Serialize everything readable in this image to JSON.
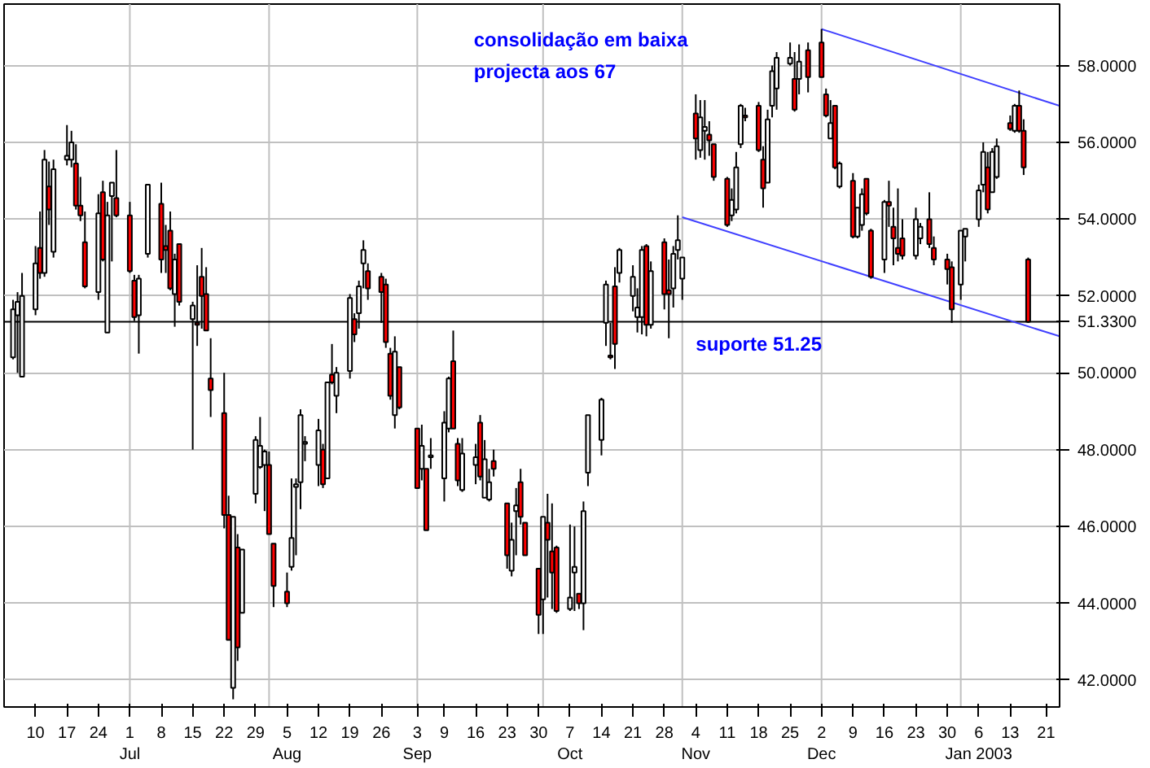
{
  "chart_data": {
    "type": "candlestick",
    "x": [
      "2002-06-05",
      "2002-06-06",
      "2002-06-07",
      "2002-06-10",
      "2002-06-11",
      "2002-06-12",
      "2002-06-13",
      "2002-06-14",
      "2002-06-17",
      "2002-06-18",
      "2002-06-19",
      "2002-06-20",
      "2002-06-21",
      "2002-06-24",
      "2002-06-25",
      "2002-06-26",
      "2002-06-27",
      "2002-06-28",
      "2002-07-01",
      "2002-07-02",
      "2002-07-03",
      "2002-07-05",
      "2002-07-08",
      "2002-07-09",
      "2002-07-10",
      "2002-07-11",
      "2002-07-12",
      "2002-07-15",
      "2002-07-16",
      "2002-07-17",
      "2002-07-18",
      "2002-07-19",
      "2002-07-22",
      "2002-07-23",
      "2002-07-24",
      "2002-07-25",
      "2002-07-26",
      "2002-07-29",
      "2002-07-30",
      "2002-07-31",
      "2002-08-01",
      "2002-08-02",
      "2002-08-05",
      "2002-08-06",
      "2002-08-07",
      "2002-08-08",
      "2002-08-09",
      "2002-08-12",
      "2002-08-13",
      "2002-08-14",
      "2002-08-15",
      "2002-08-16",
      "2002-08-19",
      "2002-08-20",
      "2002-08-21",
      "2002-08-22",
      "2002-08-23",
      "2002-08-26",
      "2002-08-27",
      "2002-08-28",
      "2002-08-29",
      "2002-08-30",
      "2002-09-03",
      "2002-09-04",
      "2002-09-05",
      "2002-09-06",
      "2002-09-09",
      "2002-09-10",
      "2002-09-11",
      "2002-09-12",
      "2002-09-13",
      "2002-09-16",
      "2002-09-17",
      "2002-09-18",
      "2002-09-19",
      "2002-09-20",
      "2002-09-23",
      "2002-09-24",
      "2002-09-25",
      "2002-09-26",
      "2002-09-27",
      "2002-09-30",
      "2002-10-01",
      "2002-10-02",
      "2002-10-03",
      "2002-10-04",
      "2002-10-07",
      "2002-10-08",
      "2002-10-09",
      "2002-10-10",
      "2002-10-11",
      "2002-10-14",
      "2002-10-15",
      "2002-10-16",
      "2002-10-17",
      "2002-10-18",
      "2002-10-21",
      "2002-10-22",
      "2002-10-23",
      "2002-10-24",
      "2002-10-25",
      "2002-10-28",
      "2002-10-29",
      "2002-10-30",
      "2002-10-31",
      "2002-11-01",
      "2002-11-04",
      "2002-11-05",
      "2002-11-06",
      "2002-11-07",
      "2002-11-08",
      "2002-11-11",
      "2002-11-12",
      "2002-11-13",
      "2002-11-14",
      "2002-11-15",
      "2002-11-18",
      "2002-11-19",
      "2002-11-20",
      "2002-11-21",
      "2002-11-22",
      "2002-11-25",
      "2002-11-26",
      "2002-11-27",
      "2002-11-29",
      "2002-12-02",
      "2002-12-03",
      "2002-12-04",
      "2002-12-05",
      "2002-12-06",
      "2002-12-09",
      "2002-12-10",
      "2002-12-11",
      "2002-12-12",
      "2002-12-13",
      "2002-12-16",
      "2002-12-17",
      "2002-12-18",
      "2002-12-19",
      "2002-12-20",
      "2002-12-23",
      "2002-12-24",
      "2002-12-26",
      "2002-12-27",
      "2002-12-30",
      "2002-12-31",
      "2003-01-02",
      "2003-01-03",
      "2003-01-06",
      "2003-01-07",
      "2003-01-08",
      "2003-01-09",
      "2003-01-10",
      "2003-01-13",
      "2003-01-14",
      "2003-01-15",
      "2003-01-16",
      "2003-01-17"
    ],
    "ohlc": [
      [
        50.4,
        51.9,
        50.35,
        51.65
      ],
      [
        51.5,
        52.1,
        50.0,
        51.85
      ],
      [
        49.9,
        52.6,
        49.9,
        52.0
      ],
      [
        51.65,
        53.3,
        51.5,
        52.85
      ],
      [
        53.25,
        54.2,
        52.45,
        52.6
      ],
      [
        52.6,
        55.8,
        52.5,
        55.55
      ],
      [
        54.85,
        55.5,
        53.85,
        54.25
      ],
      [
        53.15,
        55.55,
        53.0,
        55.3
      ],
      [
        55.55,
        56.45,
        55.4,
        55.65
      ],
      [
        55.55,
        56.3,
        55.35,
        56.0
      ],
      [
        55.45,
        55.95,
        54.25,
        54.35
      ],
      [
        54.35,
        55.1,
        53.95,
        54.1
      ],
      [
        53.4,
        54.2,
        52.2,
        52.25
      ],
      [
        52.1,
        54.65,
        51.9,
        54.15
      ],
      [
        54.7,
        55.0,
        52.9,
        52.95
      ],
      [
        51.05,
        54.45,
        51.05,
        54.1
      ],
      [
        54.6,
        54.95,
        52.9,
        54.95
      ],
      [
        54.55,
        55.8,
        54.05,
        54.1
      ],
      [
        54.1,
        54.45,
        52.6,
        52.65
      ],
      [
        52.4,
        52.55,
        51.35,
        51.45
      ],
      [
        51.5,
        52.55,
        50.5,
        52.45
      ],
      [
        53.1,
        54.9,
        53.0,
        54.9
      ],
      [
        54.4,
        54.95,
        52.6,
        52.95
      ],
      [
        53.3,
        53.85,
        52.6,
        53.2
      ],
      [
        53.7,
        54.2,
        52.15,
        52.2
      ],
      [
        52.05,
        53.1,
        51.2,
        52.95
      ],
      [
        53.35,
        53.35,
        51.75,
        51.85
      ],
      [
        51.4,
        51.85,
        48.0,
        51.75
      ],
      [
        51.3,
        52.8,
        50.7,
        51.25
      ],
      [
        52.5,
        53.25,
        51.15,
        52.0
      ],
      [
        52.05,
        52.75,
        51.1,
        51.1
      ],
      [
        49.85,
        50.9,
        48.85,
        49.55
      ],
      [
        48.95,
        50.0,
        45.95,
        46.3
      ],
      [
        46.3,
        46.8,
        43.05,
        43.05
      ],
      [
        41.8,
        46.25,
        41.5,
        46.25
      ],
      [
        45.45,
        45.8,
        42.5,
        42.85
      ],
      [
        43.75,
        45.4,
        43.75,
        45.4
      ],
      [
        46.85,
        48.35,
        46.6,
        48.25
      ],
      [
        47.55,
        48.85,
        47.5,
        48.1
      ],
      [
        47.6,
        48.0,
        46.4,
        47.95
      ],
      [
        47.6,
        47.95,
        45.8,
        45.8
      ],
      [
        45.55,
        45.55,
        43.9,
        44.45
      ],
      [
        44.3,
        44.8,
        43.9,
        44.0
      ],
      [
        44.95,
        47.25,
        44.85,
        45.7
      ],
      [
        47.03,
        47.25,
        45.25,
        47.1
      ],
      [
        47.15,
        49.05,
        46.45,
        48.9
      ],
      [
        48.15,
        48.35,
        47.7,
        48.2
      ],
      [
        47.6,
        48.8,
        47.05,
        48.5
      ],
      [
        48.0,
        48.15,
        47.0,
        47.1
      ],
      [
        47.25,
        49.75,
        47.25,
        49.75
      ],
      [
        49.95,
        50.75,
        49.7,
        49.75
      ],
      [
        49.4,
        50.15,
        48.95,
        50.0
      ],
      [
        50.05,
        52.05,
        49.85,
        51.95
      ],
      [
        51.4,
        51.55,
        50.8,
        51.0
      ],
      [
        51.55,
        52.4,
        51.15,
        52.25
      ],
      [
        52.85,
        53.45,
        52.2,
        53.2
      ],
      [
        52.65,
        52.85,
        51.9,
        52.2
      ],
      [
        52.5,
        52.6,
        51.3,
        52.1
      ],
      [
        52.3,
        52.45,
        50.65,
        50.8
      ],
      [
        50.5,
        50.65,
        49.3,
        49.4
      ],
      [
        48.9,
        50.95,
        48.55,
        50.55
      ],
      [
        50.15,
        50.15,
        49.05,
        49.1
      ],
      [
        48.55,
        48.55,
        47.0,
        47.0
      ],
      [
        47.5,
        48.65,
        47.2,
        48.1
      ],
      [
        47.5,
        47.5,
        45.9,
        45.9
      ],
      [
        47.8,
        48.3,
        47.5,
        47.85
      ],
      [
        47.25,
        49.0,
        46.65,
        48.7
      ],
      [
        48.55,
        49.9,
        48.45,
        49.85
      ],
      [
        50.3,
        51.1,
        48.55,
        48.55
      ],
      [
        48.15,
        48.3,
        47.05,
        47.2
      ],
      [
        46.95,
        48.3,
        46.9,
        47.9
      ],
      [
        47.6,
        48.15,
        47.1,
        47.8
      ],
      [
        48.7,
        48.9,
        47.2,
        47.3
      ],
      [
        46.75,
        48.25,
        46.75,
        47.75
      ],
      [
        46.7,
        47.5,
        46.65,
        47.15
      ],
      [
        47.7,
        48.0,
        47.3,
        47.5
      ],
      [
        46.6,
        46.6,
        44.9,
        45.25
      ],
      [
        44.85,
        46.1,
        44.7,
        45.65
      ],
      [
        46.4,
        47.0,
        45.25,
        46.55
      ],
      [
        47.15,
        47.5,
        46.05,
        46.25
      ],
      [
        46.1,
        46.1,
        45.25,
        45.25
      ],
      [
        44.9,
        44.9,
        43.2,
        43.7
      ],
      [
        44.1,
        46.25,
        43.2,
        46.25
      ],
      [
        46.1,
        46.85,
        44.15,
        45.65
      ],
      [
        45.35,
        46.6,
        43.85,
        44.8
      ],
      [
        45.45,
        45.5,
        43.75,
        43.8
      ],
      [
        43.85,
        46.05,
        43.8,
        44.15
      ],
      [
        44.8,
        46.0,
        43.8,
        44.95
      ],
      [
        44.25,
        44.25,
        43.85,
        44.0
      ],
      [
        44.0,
        46.65,
        43.3,
        46.4
      ],
      [
        47.4,
        48.9,
        47.05,
        48.9
      ],
      [
        48.25,
        49.35,
        47.85,
        49.3
      ],
      [
        51.3,
        52.4,
        50.7,
        52.3
      ],
      [
        50.45,
        51.3,
        50.35,
        50.4
      ],
      [
        52.25,
        52.75,
        50.1,
        50.75
      ],
      [
        52.6,
        53.25,
        52.35,
        53.2
      ],
      [
        52.0,
        52.8,
        51.6,
        52.5
      ],
      [
        51.45,
        52.2,
        51.05,
        51.7
      ],
      [
        51.45,
        53.3,
        51.0,
        53.2
      ],
      [
        53.3,
        53.35,
        50.95,
        51.25
      ],
      [
        51.25,
        52.9,
        51.15,
        52.65
      ],
      [
        53.4,
        53.5,
        51.65,
        52.05
      ],
      [
        52.15,
        52.95,
        50.9,
        52.05
      ],
      [
        52.2,
        53.3,
        51.7,
        53.1
      ],
      [
        53.2,
        54.1,
        52.95,
        53.45
      ],
      [
        52.45,
        53.0,
        51.9,
        53.0
      ],
      [
        56.75,
        57.25,
        55.55,
        56.1
      ],
      [
        55.8,
        57.1,
        55.6,
        56.65
      ],
      [
        56.3,
        57.1,
        55.55,
        56.4
      ],
      [
        56.2,
        56.55,
        55.65,
        56.05
      ],
      [
        55.95,
        55.95,
        55.0,
        55.1
      ],
      [
        55.05,
        55.1,
        53.8,
        53.85
      ],
      [
        54.1,
        54.8,
        53.95,
        54.5
      ],
      [
        54.25,
        55.75,
        54.15,
        55.35
      ],
      [
        55.95,
        57.0,
        55.85,
        56.95
      ],
      [
        56.7,
        56.9,
        56.55,
        56.65
      ],
      [
        56.95,
        57.05,
        55.75,
        55.8
      ],
      [
        55.55,
        55.9,
        54.3,
        54.8
      ],
      [
        54.95,
        56.85,
        54.95,
        56.6
      ],
      [
        56.95,
        58.0,
        56.65,
        57.85
      ],
      [
        57.4,
        58.35,
        56.85,
        58.2
      ],
      [
        58.05,
        58.6,
        58.0,
        58.2
      ],
      [
        57.65,
        58.35,
        56.8,
        56.85
      ],
      [
        57.65,
        58.55,
        57.25,
        58.1
      ],
      [
        58.4,
        58.6,
        57.3,
        57.7
      ],
      [
        58.6,
        58.95,
        57.7,
        57.7
      ],
      [
        57.25,
        57.4,
        56.65,
        56.7
      ],
      [
        56.1,
        57.1,
        56.1,
        56.5
      ],
      [
        56.95,
        56.95,
        55.3,
        55.35
      ],
      [
        54.85,
        55.5,
        54.8,
        55.45
      ],
      [
        55.0,
        55.2,
        53.5,
        53.55
      ],
      [
        53.55,
        54.3,
        53.5,
        54.3
      ],
      [
        53.85,
        54.8,
        53.7,
        54.65
      ],
      [
        55.05,
        55.05,
        54.1,
        54.15
      ],
      [
        53.7,
        53.75,
        52.45,
        52.5
      ],
      [
        52.95,
        54.5,
        52.6,
        54.45
      ],
      [
        54.45,
        55.0,
        53.8,
        54.35
      ],
      [
        53.8,
        54.3,
        52.8,
        53.5
      ],
      [
        53.25,
        54.8,
        52.9,
        53.1
      ],
      [
        53.5,
        54.0,
        52.95,
        53.05
      ],
      [
        53.05,
        54.3,
        52.95,
        54.0
      ],
      [
        53.5,
        53.9,
        53.35,
        53.8
      ],
      [
        54.0,
        54.7,
        53.25,
        53.35
      ],
      [
        53.25,
        53.55,
        52.8,
        52.95
      ],
      [
        52.95,
        53.1,
        52.3,
        52.7
      ],
      [
        52.75,
        52.9,
        51.3,
        51.65
      ],
      [
        52.3,
        53.7,
        51.9,
        53.7
      ],
      [
        53.55,
        53.75,
        52.9,
        53.75
      ],
      [
        54.0,
        54.9,
        53.8,
        54.75
      ],
      [
        54.9,
        56.0,
        54.7,
        55.75
      ],
      [
        55.35,
        55.75,
        54.15,
        54.25
      ],
      [
        54.7,
        55.85,
        54.7,
        55.75
      ],
      [
        55.1,
        56.1,
        55.05,
        55.9
      ],
      [
        56.5,
        56.7,
        56.3,
        56.35
      ],
      [
        56.3,
        57.0,
        56.25,
        56.95
      ],
      [
        56.95,
        57.35,
        56.25,
        56.3
      ],
      [
        56.3,
        56.6,
        55.15,
        55.35
      ],
      [
        52.95,
        53.0,
        51.3,
        51.33
      ]
    ],
    "colors": [
      "#ffffff",
      "#ffffff",
      "#ffffff",
      "#ffffff",
      "#ff0000",
      "#ffffff",
      "#ff0000",
      "#ffffff",
      "#ffffff",
      "#ffffff",
      "#ff0000",
      "#ff0000",
      "#ff0000",
      "#ffffff",
      "#ff0000",
      "#ffffff",
      "#ffffff",
      "#ff0000",
      "#ff0000",
      "#ff0000",
      "#ffffff",
      "#ffffff",
      "#ff0000",
      "#ff0000",
      "#ff0000",
      "#ffffff",
      "#ff0000",
      "#ffffff",
      "#ff0000",
      "#ff0000",
      "#ff0000",
      "#ff0000",
      "#ff0000",
      "#ff0000",
      "#ffffff",
      "#ff0000",
      "#ffffff",
      "#ffffff",
      "#ffffff",
      "#ffffff",
      "#ff0000",
      "#ff0000",
      "#ff0000",
      "#ffffff",
      "#ffffff",
      "#ffffff",
      "#ffffff",
      "#ffffff",
      "#ff0000",
      "#ffffff",
      "#ff0000",
      "#ffffff",
      "#ffffff",
      "#ff0000",
      "#ffffff",
      "#ffffff",
      "#ff0000",
      "#ff0000",
      "#ff0000",
      "#ff0000",
      "#ffffff",
      "#ff0000",
      "#ff0000",
      "#ffffff",
      "#ff0000",
      "#ffffff",
      "#ffffff",
      "#ffffff",
      "#ff0000",
      "#ff0000",
      "#ffffff",
      "#ffffff",
      "#ff0000",
      "#ffffff",
      "#ffffff",
      "#ff0000",
      "#ff0000",
      "#ffffff",
      "#ffffff",
      "#ff0000",
      "#ff0000",
      "#ff0000",
      "#ffffff",
      "#ff0000",
      "#ff0000",
      "#ff0000",
      "#ffffff",
      "#ffffff",
      "#ff0000",
      "#ffffff",
      "#ffffff",
      "#ffffff",
      "#ffffff",
      "#ff0000",
      "#ff0000",
      "#ffffff",
      "#ffffff",
      "#ffffff",
      "#ffffff",
      "#ff0000",
      "#ffffff",
      "#ff0000",
      "#ff0000",
      "#ffffff",
      "#ffffff",
      "#ffffff",
      "#ff0000",
      "#ffffff",
      "#ffffff",
      "#ff0000",
      "#ff0000",
      "#ff0000",
      "#ffffff",
      "#ffffff",
      "#ffffff",
      "#ff0000",
      "#ff0000",
      "#ff0000",
      "#ffffff",
      "#ffffff",
      "#ffffff",
      "#ffffff",
      "#ff0000",
      "#ffffff",
      "#ff0000",
      "#ff0000",
      "#ff0000",
      "#ffffff",
      "#ff0000",
      "#ffffff",
      "#ff0000",
      "#ffffff",
      "#ffffff",
      "#ff0000",
      "#ff0000",
      "#ffffff",
      "#ff0000",
      "#ff0000",
      "#ff0000",
      "#ff0000",
      "#ffffff",
      "#ffffff",
      "#ff0000",
      "#ff0000",
      "#ff0000",
      "#ff0000",
      "#ffffff",
      "#ffffff",
      "#ffffff",
      "#ffffff",
      "#ff0000",
      "#ffffff",
      "#ffffff",
      "#ff0000",
      "#ffffff",
      "#ff0000",
      "#ff0000",
      "#ff0000"
    ],
    "series": [
      {
        "type": "line",
        "color": "#4040ff",
        "x": [
          "2002-12-02",
          "2003-01-24"
        ],
        "values": [
          58.95,
          56.95
        ]
      },
      {
        "type": "line",
        "color": "#4040ff",
        "x": [
          "2002-11-01",
          "2003-01-24"
        ],
        "values": [
          54.05,
          50.95
        ]
      }
    ],
    "xlim": [
      "2002-06-03",
      "2003-01-24"
    ],
    "xticks": [
      {
        "value": "2002-06-10",
        "label": "10"
      },
      {
        "value": "2002-06-17",
        "label": "17"
      },
      {
        "value": "2002-06-24",
        "label": "24"
      },
      {
        "value": "2002-07-01",
        "label": "1\nJul"
      },
      {
        "value": "2002-07-08",
        "label": "8"
      },
      {
        "value": "2002-07-15",
        "label": "15"
      },
      {
        "value": "2002-07-22",
        "label": "22"
      },
      {
        "value": "2002-07-29",
        "label": "29"
      },
      {
        "value": "2002-08-05",
        "label": "5\nAug"
      },
      {
        "value": "2002-08-12",
        "label": "12"
      },
      {
        "value": "2002-08-19",
        "label": "19"
      },
      {
        "value": "2002-08-26",
        "label": "26"
      },
      {
        "value": "2002-09-03",
        "label": "3\nSep"
      },
      {
        "value": "2002-09-09",
        "label": "9"
      },
      {
        "value": "2002-09-16",
        "label": "16"
      },
      {
        "value": "2002-09-23",
        "label": "23"
      },
      {
        "value": "2002-09-30",
        "label": "30"
      },
      {
        "value": "2002-10-07",
        "label": "7\nOct"
      },
      {
        "value": "2002-10-14",
        "label": "14"
      },
      {
        "value": "2002-10-21",
        "label": "21"
      },
      {
        "value": "2002-10-28",
        "label": "28"
      },
      {
        "value": "2002-11-04",
        "label": "4\nNov"
      },
      {
        "value": "2002-11-11",
        "label": "11"
      },
      {
        "value": "2002-11-18",
        "label": "18"
      },
      {
        "value": "2002-11-25",
        "label": "25"
      },
      {
        "value": "2002-12-02",
        "label": "2\nDec"
      },
      {
        "value": "2002-12-09",
        "label": "9"
      },
      {
        "value": "2002-12-16",
        "label": "16"
      },
      {
        "value": "2002-12-23",
        "label": "23"
      },
      {
        "value": "2002-12-30",
        "label": "30"
      },
      {
        "value": "2003-01-06",
        "label": "6\nJan 2003"
      },
      {
        "value": "2003-01-13",
        "label": "13"
      },
      {
        "value": "2003-01-21",
        "label": "21"
      }
    ],
    "ylim": [
      41.3,
      59.6
    ],
    "yticks": [
      {
        "value": 42,
        "label": "42.0000"
      },
      {
        "value": 44,
        "label": "44.0000"
      },
      {
        "value": 46,
        "label": "46.0000"
      },
      {
        "value": 48,
        "label": "48.0000"
      },
      {
        "value": 50,
        "label": "50.0000"
      },
      {
        "value": 52,
        "label": "52.0000"
      },
      {
        "value": 54,
        "label": "54.0000"
      },
      {
        "value": 56,
        "label": "56.0000"
      },
      {
        "value": 58,
        "label": "58.0000"
      }
    ],
    "grid": "y",
    "ref_lines": [
      {
        "axis": "x",
        "value": "2002-07-01",
        "label": null,
        "color": "#c0c0c0"
      },
      {
        "axis": "x",
        "value": "2002-08-01",
        "label": null,
        "color": "#c0c0c0"
      },
      {
        "axis": "x",
        "value": "2002-09-03",
        "label": null,
        "color": "#c0c0c0"
      },
      {
        "axis": "x",
        "value": "2002-10-01",
        "label": null,
        "color": "#c0c0c0"
      },
      {
        "axis": "x",
        "value": "2002-11-01",
        "label": null,
        "color": "#c0c0c0"
      },
      {
        "axis": "x",
        "value": "2002-12-02",
        "label": null,
        "color": "#c0c0c0"
      },
      {
        "axis": "x",
        "value": "2003-01-02",
        "label": null,
        "color": "#c0c0c0"
      },
      {
        "axis": "y",
        "value": 51.33,
        "label": "51.3300",
        "color": "#000000"
      }
    ],
    "annotations": [
      "consolidação em baixa",
      "projecta aos 67",
      {
        "text": "suporte 51.25",
        "x": "2002-11-04",
        "y": 51.25
      }
    ]
  }
}
